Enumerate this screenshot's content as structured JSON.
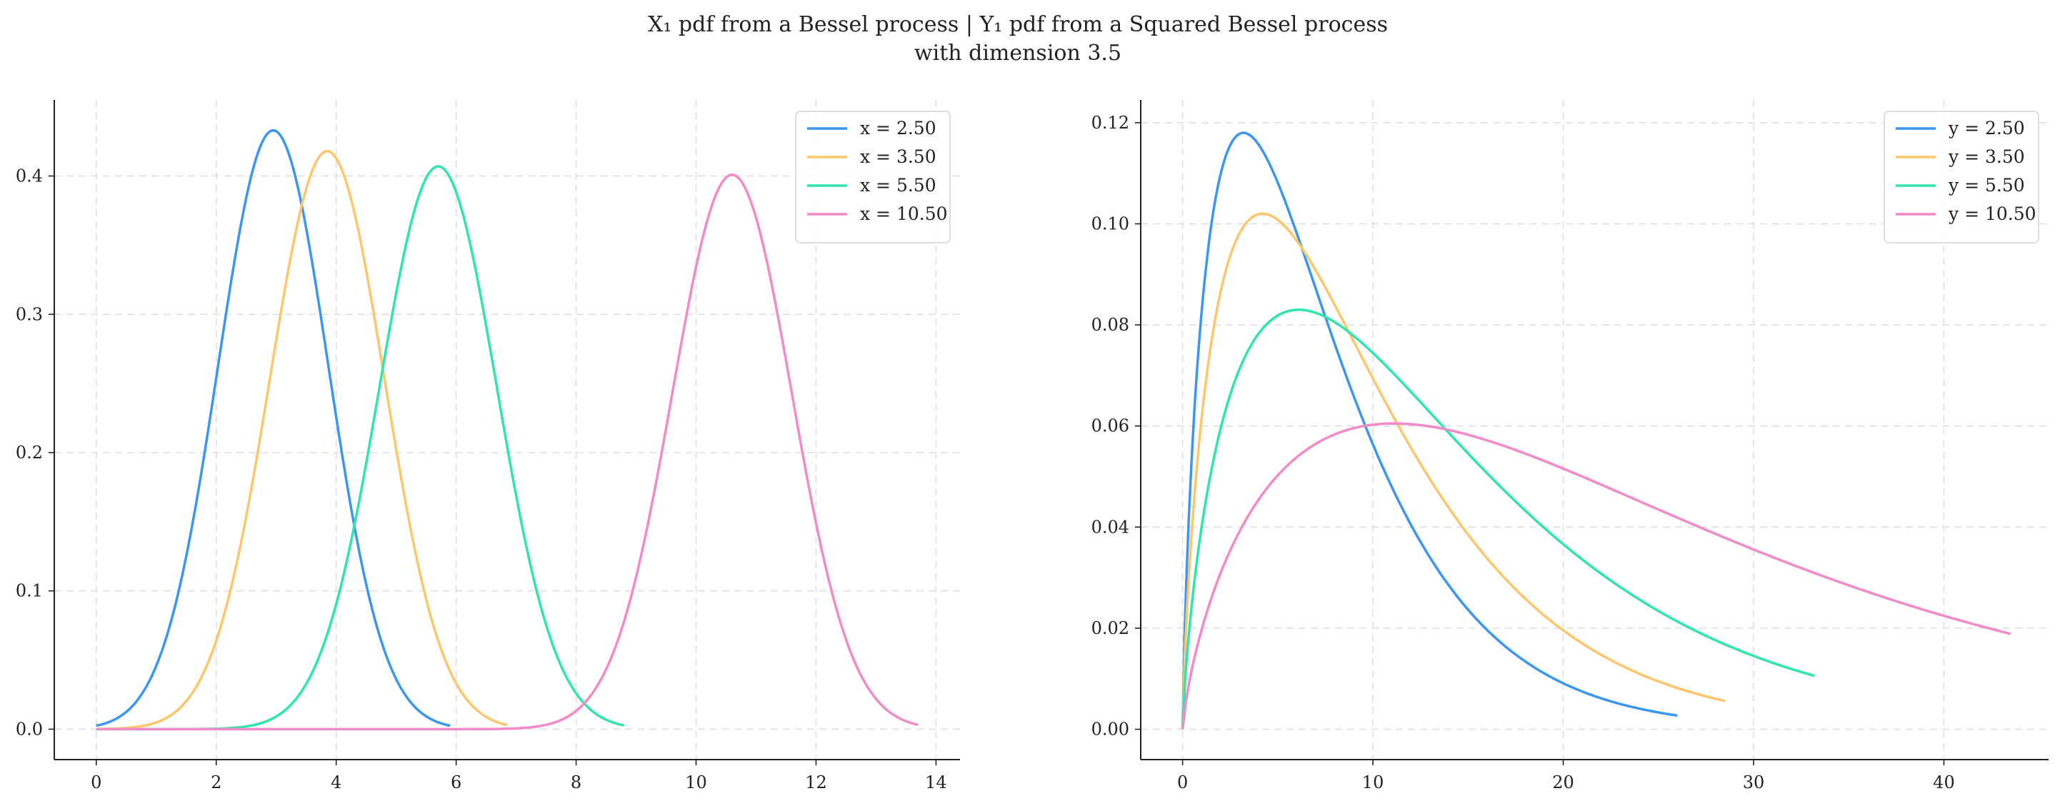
{
  "figure": {
    "title_line1": "X₁ pdf from a Bessel process | Y₁ pdf from a Squared Bessel process",
    "title_line2": "with dimension 3.5"
  },
  "chart_data": [
    {
      "type": "line",
      "xlim": [
        -0.7,
        14.4
      ],
      "ylim": [
        -0.022,
        0.455
      ],
      "xticks": [
        0,
        2,
        4,
        6,
        8,
        10,
        12,
        14
      ],
      "xtick_labels": [
        "0",
        "2",
        "4",
        "6",
        "8",
        "10",
        "12",
        "14"
      ],
      "yticks": [
        0.0,
        0.1,
        0.2,
        0.3,
        0.4
      ],
      "ytick_labels": [
        "0.0",
        "0.1",
        "0.2",
        "0.3",
        "0.4"
      ],
      "grid": true,
      "legend_position": "top-right",
      "series": [
        {
          "name": "x = 2.50",
          "color": "#3b96f3",
          "x_range": [
            0,
            5.9
          ],
          "mode": 2.95,
          "peak": 0.433,
          "sigma": 0.92
        },
        {
          "name": "x = 3.50",
          "color": "#ffc56a",
          "x_range": [
            0,
            6.85
          ],
          "mode": 3.85,
          "peak": 0.418,
          "sigma": 0.955
        },
        {
          "name": "x = 5.50",
          "color": "#2ee6ad",
          "x_range": [
            0,
            8.8
          ],
          "mode": 5.7,
          "peak": 0.407,
          "sigma": 0.98
        },
        {
          "name": "x = 10.50",
          "color": "#f38ac8",
          "x_range": [
            0,
            13.7
          ],
          "mode": 10.6,
          "peak": 0.401,
          "sigma": 0.995
        }
      ]
    },
    {
      "type": "line",
      "xlim": [
        -2.2,
        45.5
      ],
      "ylim": [
        -0.006,
        0.1245
      ],
      "xticks": [
        0,
        10,
        20,
        30,
        40
      ],
      "xtick_labels": [
        "0",
        "10",
        "20",
        "30",
        "40"
      ],
      "yticks": [
        0.0,
        0.02,
        0.04,
        0.06,
        0.08,
        0.1,
        0.12
      ],
      "ytick_labels": [
        "0.00",
        "0.02",
        "0.04",
        "0.06",
        "0.08",
        "0.10",
        "0.12"
      ],
      "grid": true,
      "legend_position": "top-right",
      "series": [
        {
          "name": "y = 2.50",
          "color": "#3b96f3",
          "x_range": [
            0,
            26.0
          ],
          "mode": 3.2,
          "peak": 0.118
        },
        {
          "name": "y = 3.50",
          "color": "#ffc56a",
          "x_range": [
            0,
            28.5
          ],
          "mode": 4.2,
          "peak": 0.102
        },
        {
          "name": "y = 5.50",
          "color": "#2ee6ad",
          "x_range": [
            0,
            33.2
          ],
          "mode": 6.1,
          "peak": 0.083
        },
        {
          "name": "y = 10.50",
          "color": "#f38ac8",
          "x_range": [
            0,
            43.5
          ],
          "mode": 11.1,
          "peak": 0.0605
        }
      ]
    }
  ]
}
